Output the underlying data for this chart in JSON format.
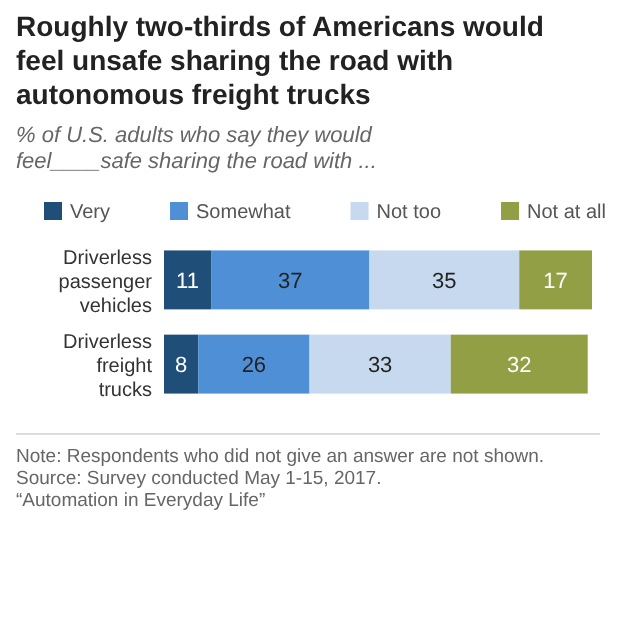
{
  "chart_data": {
    "type": "bar",
    "orientation": "horizontal",
    "stacked": true,
    "data_labels": true,
    "legend": "top",
    "title": "Roughly two-thirds of Americans would feel unsafe sharing the road with autonomous freight trucks",
    "subtitle": "% of U.S. adults who say they would feel____safe sharing the road with ...",
    "categories": [
      "Driverless passenger vehicles",
      "Driverless freight trucks"
    ],
    "series": [
      {
        "name": "Very",
        "color": "#1f4e79",
        "values": [
          11,
          8
        ]
      },
      {
        "name": "Somewhat",
        "color": "#4f8fd6",
        "values": [
          37,
          26
        ]
      },
      {
        "name": "Not too",
        "color": "#c6d9ee",
        "values": [
          35,
          33
        ]
      },
      {
        "name": "Not at all",
        "color": "#929f45",
        "values": [
          17,
          32
        ]
      }
    ],
    "annotations": [
      "Note: Respondents who did not give an answer are not shown.",
      "Source: Survey conducted May 1-15, 2017.",
      "“Automation in Everyday Life”"
    ]
  }
}
